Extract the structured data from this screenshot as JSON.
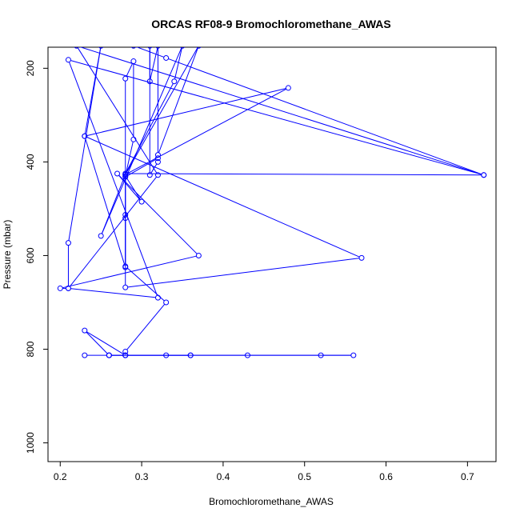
{
  "chart_data": {
    "type": "line",
    "title": "ORCAS RF08-9 Bromochloromethane_AWAS",
    "xlabel": "Bromochloromethane_AWAS",
    "ylabel": "Pressure (mbar)",
    "xlim": [
      0.185,
      0.735
    ],
    "ylim": [
      1040,
      155
    ],
    "y_reversed": true,
    "grid": false,
    "legend": "none",
    "x_ticks": [
      0.2,
      0.3,
      0.4,
      0.5,
      0.6,
      0.7
    ],
    "x_tick_labels": [
      "0.2",
      "0.3",
      "0.4",
      "0.5",
      "0.6",
      "0.7"
    ],
    "y_ticks": [
      200,
      400,
      600,
      800,
      1000
    ],
    "y_tick_labels": [
      "200",
      "400",
      "600",
      "800",
      "1000"
    ],
    "series": [
      {
        "color": "#0000ff",
        "marker": "open-circle",
        "points": [
          [
            0.23,
            813
          ],
          [
            0.26,
            813
          ],
          [
            0.28,
            813
          ],
          [
            0.33,
            813
          ],
          [
            0.36,
            813
          ],
          [
            0.43,
            813
          ],
          [
            0.52,
            813
          ],
          [
            0.56,
            813
          ],
          [
            0.26,
            813
          ],
          [
            0.28,
            813
          ],
          [
            0.36,
            813
          ],
          [
            0.26,
            813
          ],
          [
            0.23,
            760
          ],
          [
            0.28,
            813
          ],
          [
            0.28,
            805
          ],
          [
            0.33,
            700
          ],
          [
            0.28,
            623
          ],
          [
            0.28,
            520
          ],
          [
            0.28,
            513
          ],
          [
            0.28,
            432
          ],
          [
            0.32,
            392
          ],
          [
            0.32,
            400
          ],
          [
            0.31,
            428
          ],
          [
            0.31,
            152
          ],
          [
            0.31,
            228
          ],
          [
            0.32,
            152
          ],
          [
            0.32,
            385
          ],
          [
            0.37,
            152
          ],
          [
            0.28,
            427
          ],
          [
            0.48,
            242
          ],
          [
            0.23,
            345
          ],
          [
            0.28,
            625
          ],
          [
            0.28,
            427
          ],
          [
            0.25,
            558
          ],
          [
            0.35,
            152
          ],
          [
            0.34,
            228
          ],
          [
            0.28,
            425
          ],
          [
            0.72,
            428
          ],
          [
            0.21,
            182
          ],
          [
            0.32,
            690
          ],
          [
            0.21,
            670
          ],
          [
            0.2,
            670
          ],
          [
            0.37,
            600
          ],
          [
            0.27,
            425
          ],
          [
            0.3,
            485
          ],
          [
            0.28,
            430
          ],
          [
            0.29,
            352
          ],
          [
            0.29,
            185
          ],
          [
            0.28,
            222
          ],
          [
            0.28,
            668
          ],
          [
            0.57,
            605
          ],
          [
            0.23,
            345
          ],
          [
            0.25,
            152
          ],
          [
            0.21,
            573
          ],
          [
            0.21,
            670
          ],
          [
            0.32,
            428
          ],
          [
            0.22,
            152
          ],
          [
            0.72,
            428
          ],
          [
            0.33,
            178
          ],
          [
            0.29,
            152
          ]
        ]
      }
    ]
  }
}
